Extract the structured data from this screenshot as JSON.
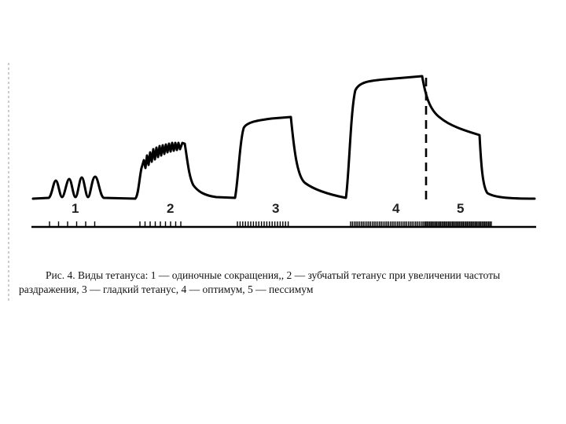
{
  "labels": [
    "1",
    "2",
    "3",
    "4",
    "5"
  ],
  "caption": {
    "line1": "Рис. 4. Виды тетануса: 1 — одиночные сокращения,, 2 — зубчатый тетанус при увеличении частоты",
    "line2": "раздражения, 3 — гладкий тетанус, 4 — оптимум, 5 — пессимум"
  },
  "colors": {
    "trace": "#000000",
    "margin_line": "#999999"
  }
}
